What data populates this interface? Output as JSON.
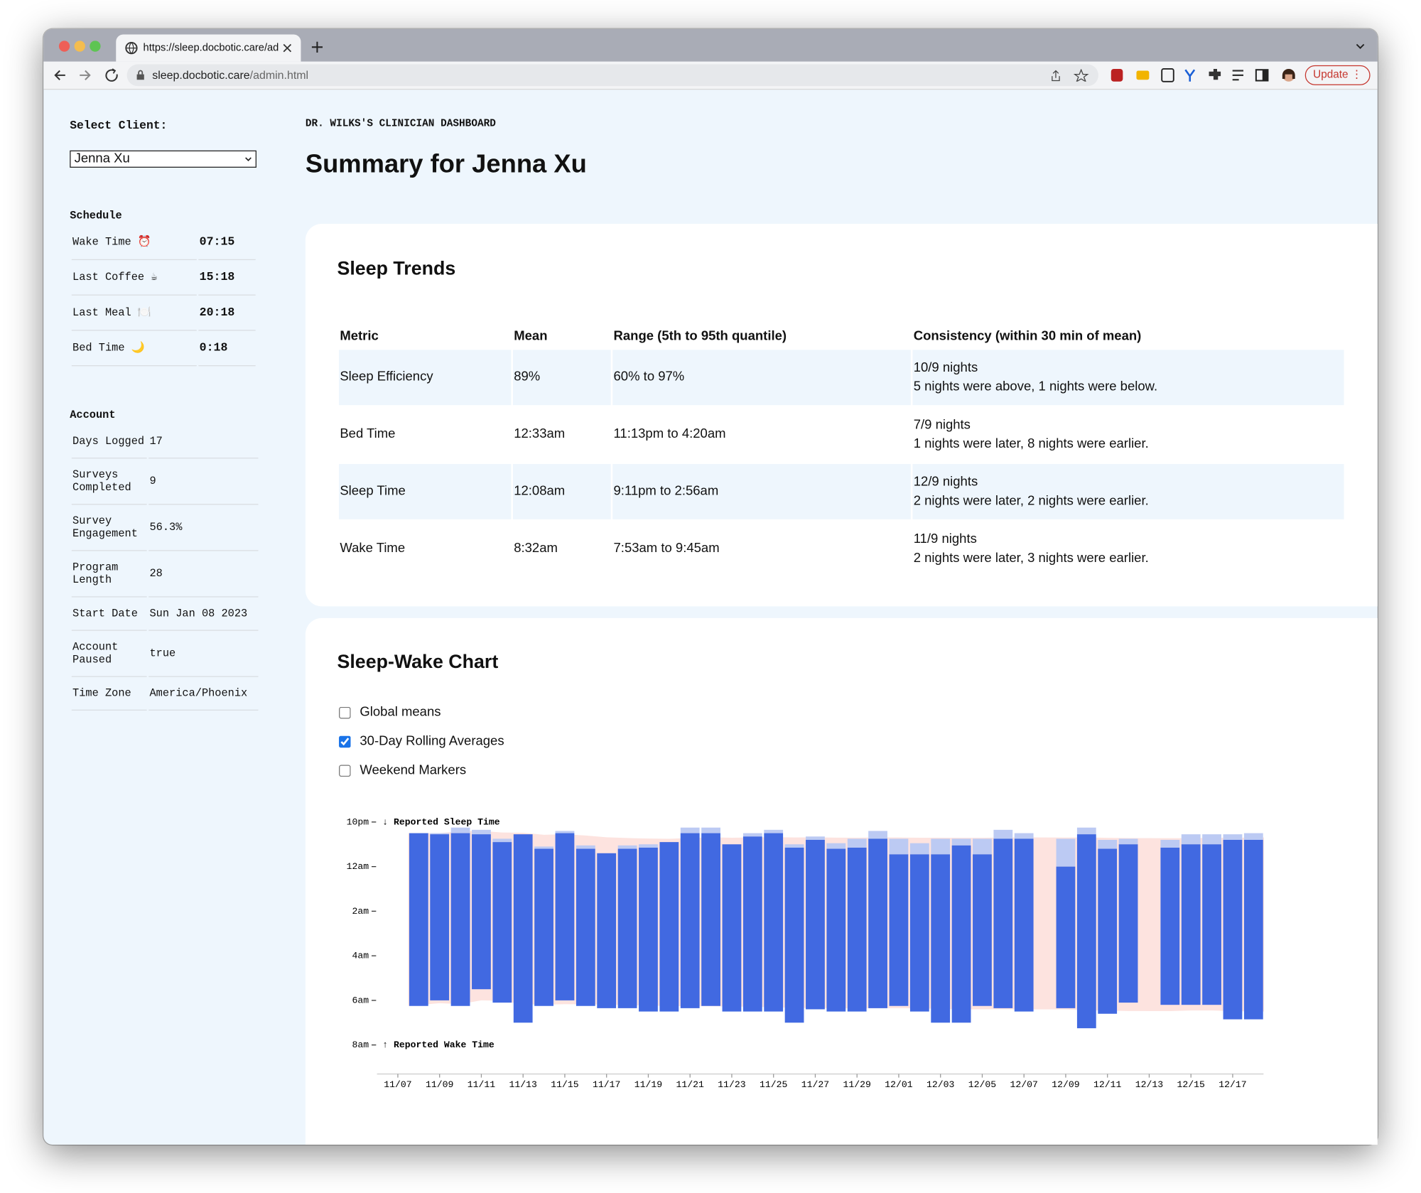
{
  "browser": {
    "tab_title": "https://sleep.docbotic.care/adm",
    "url_host": "sleep.docbotic.care",
    "url_path": "/admin.html",
    "update_button": "Update"
  },
  "sidebar": {
    "select_label": "Select Client:",
    "selected_client": "Jenna Xu",
    "schedule": {
      "title": "Schedule",
      "rows": [
        [
          "Wake Time ⏰",
          "07:15"
        ],
        [
          "Last Coffee ☕",
          "15:18"
        ],
        [
          "Last Meal 🍽️",
          "20:18"
        ],
        [
          "Bed Time 🌙",
          "0:18"
        ]
      ]
    },
    "account": {
      "title": "Account",
      "rows": [
        [
          "Days Logged",
          "17"
        ],
        [
          "Surveys Completed",
          "9"
        ],
        [
          "Survey Engagement",
          "56.3%"
        ],
        [
          "Program Length",
          "28"
        ],
        [
          "Start Date",
          "Sun Jan 08 2023"
        ],
        [
          "Account Paused",
          "true"
        ],
        [
          "Time Zone",
          "America/Phoenix"
        ]
      ]
    }
  },
  "header": {
    "kicker": "DR. WILKS'S CLINICIAN DASHBOARD",
    "title": "Summary for Jenna Xu"
  },
  "sleep_trends": {
    "title": "Sleep Trends",
    "table": {
      "columns": [
        "Metric",
        "Mean",
        "Range (5th to 95th quantile)",
        "Consistency (within 30 min of mean)"
      ],
      "rows": [
        [
          "Sleep Efficiency",
          "89%",
          "60% to 97%",
          [
            "10/9 nights",
            "5 nights were above, 1 nights were below."
          ]
        ],
        [
          "Bed Time",
          "12:33am",
          "11:13pm to 4:20am",
          [
            "7/9 nights",
            "1 nights were later, 8 nights were earlier."
          ]
        ],
        [
          "Sleep Time",
          "12:08am",
          "9:11pm to 2:56am",
          [
            "12/9 nights",
            "2 nights were later, 2 nights were earlier."
          ]
        ],
        [
          "Wake Time",
          "8:32am",
          "7:53am to 9:45am",
          [
            "11/9 nights",
            "2 nights were later, 3 nights were earlier."
          ]
        ]
      ]
    }
  },
  "sleep_wake": {
    "title": "Sleep-Wake Chart",
    "checkboxes": [
      {
        "label": "Global means",
        "checked": false
      },
      {
        "label": "30-Day Rolling Averages",
        "checked": true
      },
      {
        "label": "Weekend Markers",
        "checked": false
      }
    ]
  },
  "chart_data": {
    "type": "floating_bar",
    "annotations": [
      "↓ Reported Sleep Time",
      "↑ Reported Wake Time"
    ],
    "categories": [
      "11/07",
      null,
      "11/09",
      null,
      "11/11",
      null,
      "11/13",
      null,
      "11/15",
      null,
      "11/17",
      null,
      "11/19",
      null,
      "11/21",
      null,
      "11/23",
      null,
      "11/25",
      null,
      "11/27",
      null,
      "11/29",
      null,
      "12/01",
      null,
      "12/03",
      null,
      "12/05",
      null,
      "12/07",
      null,
      "12/09",
      null,
      "12/11",
      null,
      "12/13",
      null,
      "12/15",
      null,
      "12/17",
      null
    ],
    "series": [
      {
        "color": "#bccaf3",
        "values": [
          null,
          22.5,
          22.5,
          22.25,
          22.35,
          22.75,
          22.55,
          23.1,
          22.4,
          23.05,
          23.4,
          23.05,
          23.0,
          22.9,
          22.25,
          22.25,
          23.0,
          22.5,
          22.35,
          23.0,
          22.65,
          22.95,
          22.75,
          22.4,
          22.75,
          22.95,
          22.75,
          22.75,
          22.75,
          22.35,
          22.5,
          null,
          22.75,
          22.25,
          22.8,
          22.75,
          null,
          22.8,
          22.55,
          22.55,
          22.55,
          22.5
        ]
      },
      {
        "color": "#4169e1",
        "values": [
          null,
          22.5,
          22.55,
          22.5,
          22.55,
          22.9,
          22.55,
          23.2,
          22.5,
          23.2,
          23.4,
          23.2,
          23.15,
          22.9,
          22.5,
          22.5,
          23.0,
          22.65,
          22.5,
          23.15,
          22.8,
          23.2,
          23.15,
          22.75,
          23.45,
          23.45,
          23.45,
          23.05,
          23.45,
          22.75,
          22.75,
          null,
          24.0,
          22.55,
          23.2,
          23.0,
          null,
          23.15,
          23.0,
          23.0,
          22.8,
          22.8
        ]
      },
      {
        "color": "#4169e1",
        "values": [
          null,
          30.25,
          30.0,
          30.25,
          29.5,
          30.1,
          31.0,
          30.25,
          30.0,
          30.25,
          30.35,
          30.35,
          30.5,
          30.5,
          30.35,
          30.25,
          30.5,
          30.5,
          30.5,
          31.0,
          30.4,
          30.5,
          30.5,
          30.35,
          30.25,
          30.5,
          31.0,
          31.0,
          30.25,
          30.35,
          30.5,
          null,
          30.35,
          31.25,
          30.6,
          30.1,
          null,
          30.2,
          30.2,
          30.2,
          30.85,
          30.85
        ]
      }
    ],
    "band_color": "#fde3df",
    "ylim": [
      22,
      32
    ],
    "yticks": [
      {
        "value": 22,
        "label": "10pm"
      },
      {
        "value": 24,
        "label": "12am"
      },
      {
        "value": 26,
        "label": "2am"
      },
      {
        "value": 28,
        "label": "4am"
      },
      {
        "value": 30,
        "label": "6am"
      },
      {
        "value": 32,
        "label": "8am"
      }
    ]
  }
}
